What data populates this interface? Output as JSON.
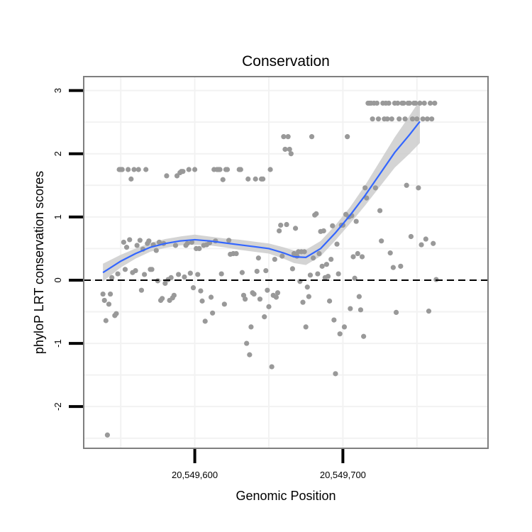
{
  "chart_data": {
    "type": "scatter",
    "title": "Conservation",
    "xlabel": "Genomic Position",
    "ylabel": "phyloP LRT conservation scores",
    "xlim": [
      20549525,
      20549798
    ],
    "ylim": [
      -2.66,
      3.22
    ],
    "x_ticks": [
      {
        "value": 20549600,
        "label": "20,549,600"
      },
      {
        "value": 20549700,
        "label": "20,549,700"
      }
    ],
    "y_ticks": [
      {
        "value": -2,
        "label": "-2"
      },
      {
        "value": -1,
        "label": "-1"
      },
      {
        "value": 0,
        "label": "0"
      },
      {
        "value": 1,
        "label": "1"
      },
      {
        "value": 2,
        "label": "2"
      },
      {
        "value": 3,
        "label": "3"
      }
    ],
    "reference_line": {
      "y": 0,
      "style": "dashed"
    },
    "colors": {
      "points": "#999999",
      "smooth": "#3366ff",
      "ribbon": "#cccccc",
      "frame": "#7f7f7f",
      "grid": "#f2f2f2"
    },
    "series": [
      {
        "name": "phyloP scores",
        "points": [
          [
            20549538,
            -0.22
          ],
          [
            20549539,
            -0.32
          ],
          [
            20549540,
            -0.64
          ],
          [
            20549541,
            -2.45
          ],
          [
            20549542,
            -0.38
          ],
          [
            20549543,
            -0.22
          ],
          [
            20549544,
            0.04
          ],
          [
            20549546,
            -0.56
          ],
          [
            20549547,
            -0.53
          ],
          [
            20549548,
            0.1
          ],
          [
            20549549,
            1.75
          ],
          [
            20549550,
            1.75
          ],
          [
            20549551,
            1.75
          ],
          [
            20549552,
            0.6
          ],
          [
            20549553,
            0.17
          ],
          [
            20549554,
            0.52
          ],
          [
            20549555,
            1.75
          ],
          [
            20549556,
            0.64
          ],
          [
            20549557,
            1.6
          ],
          [
            20549558,
            0.12
          ],
          [
            20549559,
            1.75
          ],
          [
            20549560,
            0.15
          ],
          [
            20549561,
            0.55
          ],
          [
            20549562,
            1.75
          ],
          [
            20549563,
            0.63
          ],
          [
            20549564,
            -0.16
          ],
          [
            20549565,
            0.49
          ],
          [
            20549566,
            0.09
          ],
          [
            20549567,
            1.75
          ],
          [
            20549568,
            0.58
          ],
          [
            20549569,
            0.62
          ],
          [
            20549570,
            0.17
          ],
          [
            20549571,
            0.17
          ],
          [
            20549572,
            0.56
          ],
          [
            20549574,
            0.47
          ],
          [
            20549575,
            -0.01
          ],
          [
            20549576,
            0.6
          ],
          [
            20549577,
            -0.32
          ],
          [
            20549578,
            -0.29
          ],
          [
            20549579,
            0.58
          ],
          [
            20549580,
            -0.05
          ],
          [
            20549581,
            1.65
          ],
          [
            20549582,
            0.01
          ],
          [
            20549583,
            -0.32
          ],
          [
            20549584,
            0.04
          ],
          [
            20549585,
            -0.28
          ],
          [
            20549586,
            -0.24
          ],
          [
            20549587,
            0.55
          ],
          [
            20549588,
            1.65
          ],
          [
            20549589,
            0.09
          ],
          [
            20549590,
            1.7
          ],
          [
            20549591,
            1.72
          ],
          [
            20549592,
            1.72
          ],
          [
            20549593,
            0.05
          ],
          [
            20549594,
            0.55
          ],
          [
            20549595,
            0.58
          ],
          [
            20549596,
            1.75
          ],
          [
            20549597,
            0.11
          ],
          [
            20549598,
            0.6
          ],
          [
            20549599,
            -0.12
          ],
          [
            20549600,
            1.75
          ],
          [
            20549601,
            0.5
          ],
          [
            20549602,
            0.09
          ],
          [
            20549603,
            0.5
          ],
          [
            20549604,
            -0.17
          ],
          [
            20549605,
            -0.33
          ],
          [
            20549606,
            0.55
          ],
          [
            20549607,
            -0.65
          ],
          [
            20549608,
            0.56
          ],
          [
            20549610,
            0.59
          ],
          [
            20549611,
            -0.27
          ],
          [
            20549612,
            -0.52
          ],
          [
            20549613,
            1.75
          ],
          [
            20549614,
            0.62
          ],
          [
            20549615,
            1.75
          ],
          [
            20549616,
            1.75
          ],
          [
            20549617,
            1.75
          ],
          [
            20549618,
            0.1
          ],
          [
            20549619,
            1.59
          ],
          [
            20549620,
            -0.38
          ],
          [
            20549621,
            1.75
          ],
          [
            20549622,
            1.75
          ],
          [
            20549623,
            0.63
          ],
          [
            20549624,
            0.41
          ],
          [
            20549626,
            0.42
          ],
          [
            20549628,
            0.42
          ],
          [
            20549630,
            1.75
          ],
          [
            20549631,
            1.75
          ],
          [
            20549632,
            0.12
          ],
          [
            20549633,
            -0.24
          ],
          [
            20549634,
            -0.3
          ],
          [
            20549635,
            -1.0
          ],
          [
            20549636,
            1.6
          ],
          [
            20549637,
            -1.18
          ],
          [
            20549638,
            -0.74
          ],
          [
            20549639,
            -0.2
          ],
          [
            20549640,
            -0.22
          ],
          [
            20549641,
            1.6
          ],
          [
            20549642,
            0.14
          ],
          [
            20549643,
            0.35
          ],
          [
            20549644,
            -0.3
          ],
          [
            20549645,
            1.6
          ],
          [
            20549646,
            1.6
          ],
          [
            20549647,
            -0.58
          ],
          [
            20549648,
            0.15
          ],
          [
            20549649,
            -0.16
          ],
          [
            20549650,
            -0.42
          ],
          [
            20549651,
            1.75
          ],
          [
            20549652,
            -1.37
          ],
          [
            20549653,
            -0.24
          ],
          [
            20549654,
            0.33
          ],
          [
            20549655,
            -0.27
          ],
          [
            20549656,
            -0.2
          ],
          [
            20549657,
            0.78
          ],
          [
            20549658,
            0.87
          ],
          [
            20549659,
            0.38
          ],
          [
            20549660,
            2.27
          ],
          [
            20549661,
            2.07
          ],
          [
            20549662,
            0.88
          ],
          [
            20549663,
            2.27
          ],
          [
            20549664,
            2.07
          ],
          [
            20549665,
            2.0
          ],
          [
            20549666,
            0.18
          ],
          [
            20549667,
            0.42
          ],
          [
            20549668,
            0.82
          ],
          [
            20549669,
            0.38
          ],
          [
            20549670,
            0.45
          ],
          [
            20549671,
            -0.02
          ],
          [
            20549672,
            0.45
          ],
          [
            20549673,
            -0.35
          ],
          [
            20549674,
            0.45
          ],
          [
            20549675,
            -0.74
          ],
          [
            20549676,
            -0.11
          ],
          [
            20549677,
            -0.26
          ],
          [
            20549678,
            0.08
          ],
          [
            20549679,
            2.27
          ],
          [
            20549680,
            0.35
          ],
          [
            20549681,
            1.03
          ],
          [
            20549682,
            1.05
          ],
          [
            20549683,
            0.1
          ],
          [
            20549684,
            0.42
          ],
          [
            20549685,
            0.77
          ],
          [
            20549686,
            0.22
          ],
          [
            20549687,
            0.78
          ],
          [
            20549688,
            0.04
          ],
          [
            20549689,
            0.25
          ],
          [
            20549690,
            0.06
          ],
          [
            20549691,
            -0.33
          ],
          [
            20549692,
            0.33
          ],
          [
            20549693,
            0.86
          ],
          [
            20549694,
            -0.63
          ],
          [
            20549695,
            -1.48
          ],
          [
            20549696,
            0.57
          ],
          [
            20549697,
            0.1
          ],
          [
            20549698,
            -0.85
          ],
          [
            20549699,
            0.87
          ],
          [
            20549700,
            0.87
          ],
          [
            20549701,
            -0.74
          ],
          [
            20549702,
            1.04
          ],
          [
            20549703,
            2.27
          ],
          [
            20549704,
            1.0
          ],
          [
            20549705,
            -0.45
          ],
          [
            20549706,
            1.02
          ],
          [
            20549707,
            0.37
          ],
          [
            20549708,
            0.03
          ],
          [
            20549709,
            0.93
          ],
          [
            20549710,
            0.42
          ],
          [
            20549711,
            -0.26
          ],
          [
            20549712,
            -0.47
          ],
          [
            20549713,
            0.37
          ],
          [
            20549714,
            -0.89
          ],
          [
            20549715,
            1.46
          ],
          [
            20549716,
            1.3
          ],
          [
            20549717,
            2.8
          ],
          [
            20549718,
            2.8
          ],
          [
            20549719,
            2.8
          ],
          [
            20549720,
            2.55
          ],
          [
            20549721,
            2.8
          ],
          [
            20549722,
            1.46
          ],
          [
            20549723,
            2.8
          ],
          [
            20549724,
            2.55
          ],
          [
            20549725,
            1.1
          ],
          [
            20549726,
            0.62
          ],
          [
            20549727,
            2.8
          ],
          [
            20549728,
            2.55
          ],
          [
            20549729,
            2.8
          ],
          [
            20549730,
            2.55
          ],
          [
            20549731,
            2.8
          ],
          [
            20549732,
            0.43
          ],
          [
            20549733,
            2.55
          ],
          [
            20549734,
            0.2
          ],
          [
            20549735,
            2.8
          ],
          [
            20549736,
            -0.51
          ],
          [
            20549737,
            2.8
          ],
          [
            20549738,
            2.55
          ],
          [
            20549739,
            0.22
          ],
          [
            20549740,
            2.8
          ],
          [
            20549741,
            2.8
          ],
          [
            20549742,
            2.55
          ],
          [
            20549743,
            1.5
          ],
          [
            20549744,
            2.8
          ],
          [
            20549745,
            2.8
          ],
          [
            20549746,
            0.69
          ],
          [
            20549747,
            2.55
          ],
          [
            20549748,
            2.8
          ],
          [
            20549749,
            2.8
          ],
          [
            20549750,
            2.55
          ],
          [
            20549751,
            1.46
          ],
          [
            20549752,
            2.8
          ],
          [
            20549753,
            0.56
          ],
          [
            20549754,
            2.55
          ],
          [
            20549755,
            2.8
          ],
          [
            20549756,
            0.65
          ],
          [
            20549757,
            2.55
          ],
          [
            20549758,
            -0.49
          ],
          [
            20549759,
            2.8
          ],
          [
            20549760,
            2.55
          ],
          [
            20549761,
            0.58
          ],
          [
            20549762,
            2.8
          ],
          [
            20549763,
            0.01
          ]
        ]
      },
      {
        "name": "smooth",
        "points": [
          [
            20549538,
            0.12
          ],
          [
            20549550,
            0.3
          ],
          [
            20549560,
            0.42
          ],
          [
            20549570,
            0.52
          ],
          [
            20549580,
            0.58
          ],
          [
            20549590,
            0.62
          ],
          [
            20549600,
            0.64
          ],
          [
            20549610,
            0.62
          ],
          [
            20549620,
            0.59
          ],
          [
            20549630,
            0.56
          ],
          [
            20549640,
            0.53
          ],
          [
            20549650,
            0.5
          ],
          [
            20549660,
            0.43
          ],
          [
            20549667,
            0.37
          ],
          [
            20549675,
            0.36
          ],
          [
            20549685,
            0.5
          ],
          [
            20549695,
            0.75
          ],
          [
            20549705,
            1.03
          ],
          [
            20549715,
            1.34
          ],
          [
            20549725,
            1.68
          ],
          [
            20549735,
            2.02
          ],
          [
            20549745,
            2.3
          ],
          [
            20549752,
            2.51
          ]
        ],
        "band_lower": [
          [
            20549538,
            -0.02
          ],
          [
            20549550,
            0.2
          ],
          [
            20549560,
            0.34
          ],
          [
            20549570,
            0.45
          ],
          [
            20549580,
            0.51
          ],
          [
            20549590,
            0.55
          ],
          [
            20549600,
            0.56
          ],
          [
            20549610,
            0.55
          ],
          [
            20549620,
            0.52
          ],
          [
            20549630,
            0.48
          ],
          [
            20549640,
            0.45
          ],
          [
            20549650,
            0.42
          ],
          [
            20549660,
            0.34
          ],
          [
            20549667,
            0.27
          ],
          [
            20549675,
            0.24
          ],
          [
            20549685,
            0.38
          ],
          [
            20549695,
            0.63
          ],
          [
            20549705,
            0.9
          ],
          [
            20549715,
            1.18
          ],
          [
            20549725,
            1.48
          ],
          [
            20549735,
            1.78
          ],
          [
            20549745,
            2.0
          ],
          [
            20549752,
            2.17
          ]
        ],
        "band_upper": [
          [
            20549538,
            0.26
          ],
          [
            20549550,
            0.4
          ],
          [
            20549560,
            0.5
          ],
          [
            20549570,
            0.59
          ],
          [
            20549580,
            0.65
          ],
          [
            20549590,
            0.69
          ],
          [
            20549600,
            0.72
          ],
          [
            20549610,
            0.69
          ],
          [
            20549620,
            0.66
          ],
          [
            20549630,
            0.64
          ],
          [
            20549640,
            0.61
          ],
          [
            20549650,
            0.58
          ],
          [
            20549660,
            0.52
          ],
          [
            20549667,
            0.47
          ],
          [
            20549675,
            0.48
          ],
          [
            20549685,
            0.62
          ],
          [
            20549695,
            0.87
          ],
          [
            20549705,
            1.16
          ],
          [
            20549715,
            1.5
          ],
          [
            20549725,
            1.88
          ],
          [
            20549735,
            2.26
          ],
          [
            20549745,
            2.6
          ],
          [
            20549752,
            2.85
          ]
        ]
      }
    ]
  }
}
